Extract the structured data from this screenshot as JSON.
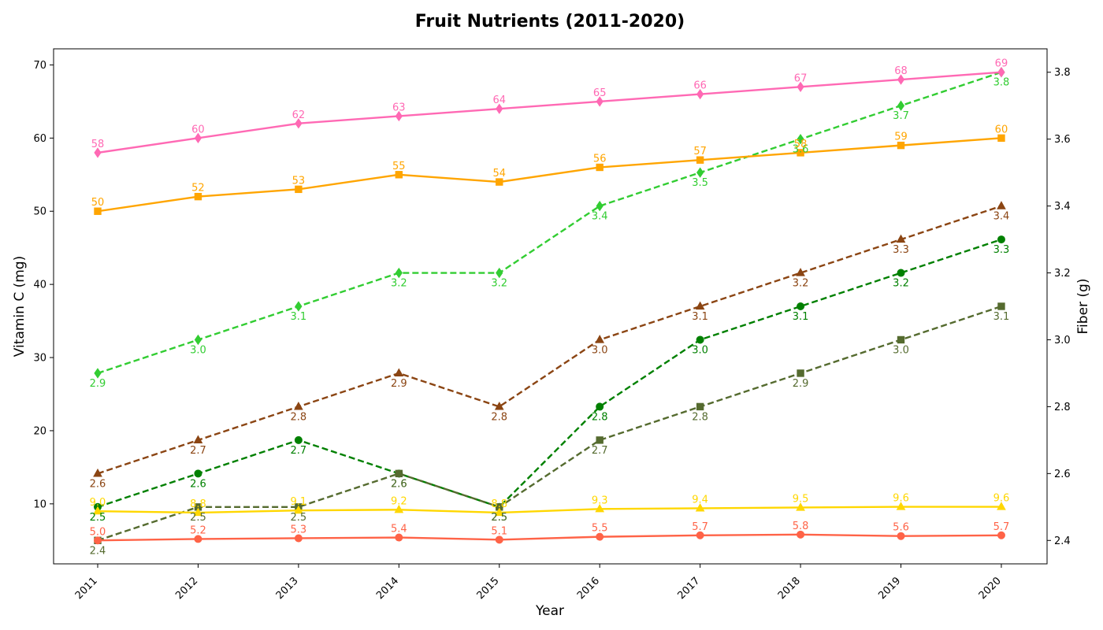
{
  "chart_data": {
    "type": "line",
    "title": "Fruit Nutrients (2011-2020)",
    "xlabel": "Year",
    "ylabel_left": "Vitamin C (mg)",
    "ylabel_right": "Fiber (g)",
    "x": [
      "2011",
      "2012",
      "2013",
      "2014",
      "2015",
      "2016",
      "2017",
      "2018",
      "2019",
      "2020"
    ],
    "ylim_left": [
      1.8,
      72.2
    ],
    "ylim_right": [
      2.33,
      3.87
    ],
    "yticks_left": [
      10,
      20,
      30,
      40,
      50,
      60,
      70
    ],
    "yticks_right": [
      2.4,
      2.6,
      2.8,
      3.0,
      3.2,
      3.4,
      3.6,
      3.8
    ],
    "grid": false,
    "series": [
      {
        "axis": "left",
        "color": "#ff69b4",
        "marker": "diamond",
        "dash": "solid",
        "values": [
          58,
          60,
          62,
          63,
          64,
          65,
          66,
          67,
          68,
          69
        ],
        "labels": [
          "58",
          "60",
          "62",
          "63",
          "64",
          "65",
          "66",
          "67",
          "68",
          "69"
        ],
        "label_pos": "above"
      },
      {
        "axis": "left",
        "color": "#ffa500",
        "marker": "square",
        "dash": "solid",
        "values": [
          50,
          52,
          53,
          55,
          54,
          56,
          57,
          58,
          59,
          60
        ],
        "labels": [
          "50",
          "52",
          "53",
          "55",
          "54",
          "56",
          "57",
          "58",
          "59",
          "60"
        ],
        "label_pos": "above"
      },
      {
        "axis": "left",
        "color": "#ffd700",
        "marker": "triangle",
        "dash": "solid",
        "values": [
          9.0,
          8.8,
          9.1,
          9.2,
          8.8,
          9.3,
          9.4,
          9.5,
          9.6,
          9.6
        ],
        "labels": [
          "9.0",
          "8.8",
          "9.1",
          "9.2",
          "8.8",
          "9.3",
          "9.4",
          "9.5",
          "9.6",
          "9.6"
        ],
        "label_pos": "above"
      },
      {
        "axis": "left",
        "color": "#ff6347",
        "marker": "circle",
        "dash": "solid",
        "values": [
          5.0,
          5.2,
          5.3,
          5.4,
          5.1,
          5.5,
          5.7,
          5.8,
          5.6,
          5.7
        ],
        "labels": [
          "5.0",
          "5.2",
          "5.3",
          "5.4",
          "5.1",
          "5.5",
          "5.7",
          "5.8",
          "5.6",
          "5.7"
        ],
        "label_pos": "above"
      },
      {
        "axis": "right",
        "color": "#32cd32",
        "marker": "diamond",
        "dash": "dashed",
        "values": [
          2.9,
          3.0,
          3.1,
          3.2,
          3.2,
          3.4,
          3.5,
          3.6,
          3.7,
          3.8
        ],
        "labels": [
          "2.9",
          "3.0",
          "3.1",
          "3.2",
          "3.2",
          "3.4",
          "3.5",
          "3.6",
          "3.7",
          "3.8"
        ],
        "label_pos": "below"
      },
      {
        "axis": "right",
        "color": "#8b4513",
        "marker": "triangle",
        "dash": "dashed",
        "values": [
          2.6,
          2.7,
          2.8,
          2.9,
          2.8,
          3.0,
          3.1,
          3.2,
          3.3,
          3.4
        ],
        "labels": [
          "2.6",
          "2.7",
          "2.8",
          "2.9",
          "2.8",
          "3.0",
          "3.1",
          "3.2",
          "3.3",
          "3.4"
        ],
        "label_pos": "below"
      },
      {
        "axis": "right",
        "color": "#008000",
        "marker": "circle",
        "dash": "dashed",
        "values": [
          2.5,
          2.6,
          2.7,
          2.6,
          2.5,
          2.8,
          3.0,
          3.1,
          3.2,
          3.3
        ],
        "labels": [
          "2.5",
          "2.6",
          "2.7",
          "2.6",
          "2.5",
          "2.8",
          "3.0",
          "3.1",
          "3.2",
          "3.3"
        ],
        "label_pos": "below"
      },
      {
        "axis": "right",
        "color": "#556b2f",
        "marker": "square",
        "dash": "dashed",
        "values": [
          2.4,
          2.5,
          2.5,
          2.6,
          2.5,
          2.7,
          2.8,
          2.9,
          3.0,
          3.1
        ],
        "labels": [
          "2.4",
          "2.5",
          "2.5",
          "2.6",
          "2.5",
          "2.7",
          "2.8",
          "2.9",
          "3.0",
          "3.1"
        ],
        "label_pos": "below"
      }
    ]
  }
}
